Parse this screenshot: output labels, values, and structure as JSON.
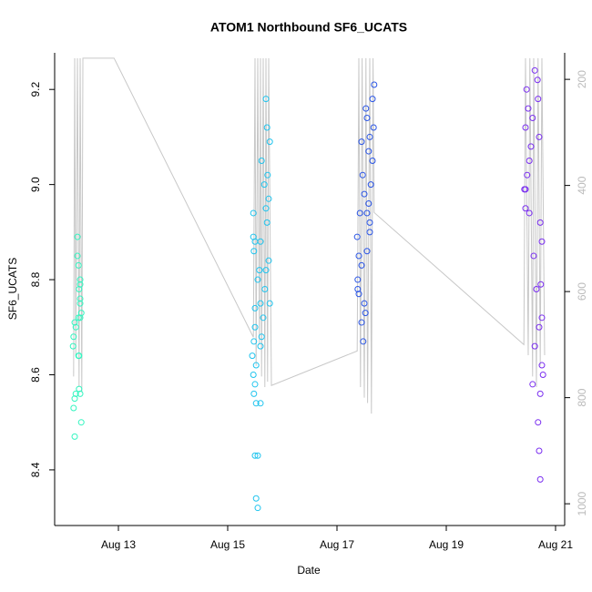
{
  "chart_data": {
    "type": "scatter",
    "title": "ATOM1 Northbound SF6_UCATS",
    "x_label": "Date",
    "y_label": "SF6_UCATS",
    "xlim": [
      11.833,
      21.167
    ],
    "xticks": [
      {
        "value": 13,
        "label": "Aug 13"
      },
      {
        "value": 15,
        "label": "Aug 15"
      },
      {
        "value": 17,
        "label": "Aug 17"
      },
      {
        "value": 19,
        "label": "Aug 19"
      },
      {
        "value": 21,
        "label": "Aug 21"
      }
    ],
    "ylim": [
      8.283,
      9.277
    ],
    "yticks": [
      8.4,
      8.6,
      8.8,
      {
        "value": 9,
        "label": "9.0"
      },
      9.2
    ],
    "y2lim": [
      1041,
      150
    ],
    "y2ticks": [
      200,
      400,
      600,
      800,
      1000
    ],
    "y2_color": "#bbbbbb",
    "series": [
      {
        "color": "#c8c8c8",
        "axis": "y2",
        "mode": "line",
        "x": [
          12.18,
          12.2,
          12.22,
          12.25,
          12.28,
          12.3,
          12.33,
          12.35,
          12.92,
          15.47,
          15.5,
          15.52,
          15.55,
          15.58,
          15.6,
          15.62,
          15.65,
          15.68,
          15.7,
          15.73,
          15.75,
          15.8,
          17.37,
          17.4,
          17.43,
          17.46,
          17.5,
          17.53,
          17.56,
          17.6,
          17.63,
          17.66,
          17.68,
          20.42,
          20.45,
          20.5,
          20.53,
          20.58,
          20.6,
          20.65,
          20.68,
          20.72,
          20.75,
          20.8
        ],
        "values": [
          760,
          160,
          720,
          160,
          780,
          160,
          790,
          160,
          160,
          686,
          160,
          740,
          160,
          700,
          160,
          760,
          160,
          780,
          160,
          770,
          160,
          777,
          712,
          160,
          780,
          160,
          800,
          160,
          810,
          160,
          830,
          160,
          451,
          700,
          160,
          720,
          160,
          760,
          160,
          780,
          160,
          740,
          160,
          720
        ]
      },
      {
        "color": "#33f5c0",
        "mode": "points",
        "x": [
          12.2,
          12.18,
          12.2,
          12.22,
          12.17,
          12.18,
          12.22,
          12.2,
          12.27,
          12.28,
          12.27,
          12.3,
          12.3,
          12.28,
          12.3,
          12.27,
          12.25,
          12.25,
          12.3,
          12.28,
          12.32,
          12.32,
          12.3,
          12.3
        ],
        "values": [
          8.47,
          8.53,
          8.55,
          8.56,
          8.66,
          8.68,
          8.7,
          8.71,
          8.64,
          8.64,
          8.72,
          8.76,
          8.79,
          8.78,
          8.8,
          8.83,
          8.85,
          8.89,
          8.56,
          8.57,
          8.5,
          8.73,
          8.75,
          8.72
        ]
      },
      {
        "color": "#20c4ee",
        "mode": "points",
        "x": [
          15.55,
          15.52,
          15.5,
          15.55,
          15.52,
          15.6,
          15.48,
          15.5,
          15.47,
          15.52,
          15.45,
          15.6,
          15.48,
          15.62,
          15.5,
          15.65,
          15.5,
          15.6,
          15.68,
          15.55,
          15.7,
          15.75,
          15.48,
          15.5,
          15.47,
          15.72,
          15.47,
          15.7,
          15.75,
          15.67,
          15.73,
          15.62,
          15.77,
          15.72,
          15.7,
          15.6,
          15.58,
          15.77
        ],
        "values": [
          8.32,
          8.34,
          8.43,
          8.43,
          8.54,
          8.54,
          8.56,
          8.58,
          8.6,
          8.62,
          8.64,
          8.66,
          8.67,
          8.68,
          8.7,
          8.72,
          8.74,
          8.75,
          8.78,
          8.8,
          8.82,
          8.84,
          8.86,
          8.88,
          8.89,
          8.92,
          8.94,
          8.95,
          8.97,
          9.0,
          9.02,
          9.05,
          9.09,
          9.12,
          9.18,
          8.88,
          8.82,
          8.75
        ]
      },
      {
        "color": "#2a55e6",
        "mode": "points",
        "x": [
          17.48,
          17.45,
          17.52,
          17.5,
          17.4,
          17.38,
          17.38,
          17.45,
          17.55,
          17.37,
          17.6,
          17.42,
          17.58,
          17.5,
          17.62,
          17.47,
          17.65,
          17.58,
          17.45,
          17.6,
          17.67,
          17.55,
          17.53,
          17.65,
          17.68,
          17.55,
          17.6,
          17.4
        ],
        "values": [
          8.67,
          8.71,
          8.73,
          8.75,
          8.77,
          8.78,
          8.8,
          8.83,
          8.86,
          8.89,
          8.92,
          8.94,
          8.96,
          8.98,
          9.0,
          9.02,
          9.05,
          9.07,
          9.09,
          9.1,
          9.12,
          9.14,
          9.16,
          9.18,
          9.21,
          8.94,
          8.9,
          8.85
        ]
      },
      {
        "color": "#7a2ef0",
        "mode": "points",
        "x": [
          20.72,
          20.7,
          20.68,
          20.72,
          20.58,
          20.75,
          20.62,
          20.7,
          20.75,
          20.65,
          20.6,
          20.75,
          20.72,
          20.45,
          20.43,
          20.48,
          20.52,
          20.55,
          20.7,
          20.45,
          20.58,
          20.5,
          20.68,
          20.47,
          20.67,
          20.62,
          20.45,
          20.52,
          20.73,
          20.77
        ],
        "values": [
          8.38,
          8.44,
          8.5,
          8.56,
          8.58,
          8.62,
          8.66,
          8.7,
          8.72,
          8.78,
          8.85,
          8.88,
          8.92,
          8.95,
          8.99,
          9.02,
          9.05,
          9.08,
          9.1,
          9.12,
          9.14,
          9.16,
          9.18,
          9.2,
          9.22,
          9.24,
          8.99,
          8.94,
          8.79,
          8.6
        ]
      }
    ]
  }
}
